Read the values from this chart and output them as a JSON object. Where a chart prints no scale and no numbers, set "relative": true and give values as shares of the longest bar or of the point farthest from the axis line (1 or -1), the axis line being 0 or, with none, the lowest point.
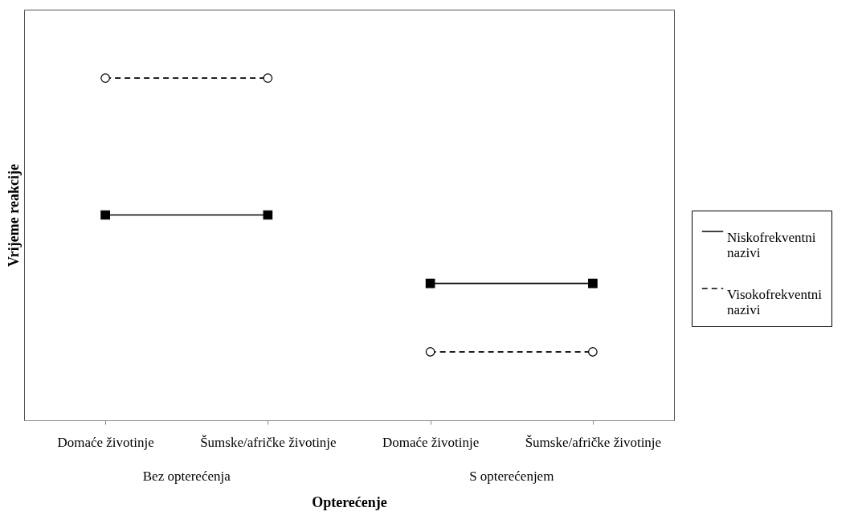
{
  "chart_data": {
    "type": "line",
    "relative": true,
    "xlabel": "Opterećenje",
    "ylabel": "Vrijeme reakcije",
    "categories": [
      "Domaće životinje",
      "Šumske/afričke životinje",
      "Domaće životinje",
      "Šumske/afričke životinje"
    ],
    "series": [
      {
        "name": "Niskofrekventni nazivi",
        "color": "#000000",
        "marker": "square",
        "line_style": "solid",
        "values": [
          0.6,
          0.6,
          0.4,
          0.4
        ]
      },
      {
        "name": "Visokofrekventni nazivi",
        "color": "#000000",
        "marker": "circle",
        "line_style": "dashed",
        "values": [
          1,
          1,
          0.2,
          0.2
        ]
      }
    ],
    "annotations": [
      "Bez opterećenja",
      "S opterećenjem"
    ],
    "legend": "right"
  }
}
